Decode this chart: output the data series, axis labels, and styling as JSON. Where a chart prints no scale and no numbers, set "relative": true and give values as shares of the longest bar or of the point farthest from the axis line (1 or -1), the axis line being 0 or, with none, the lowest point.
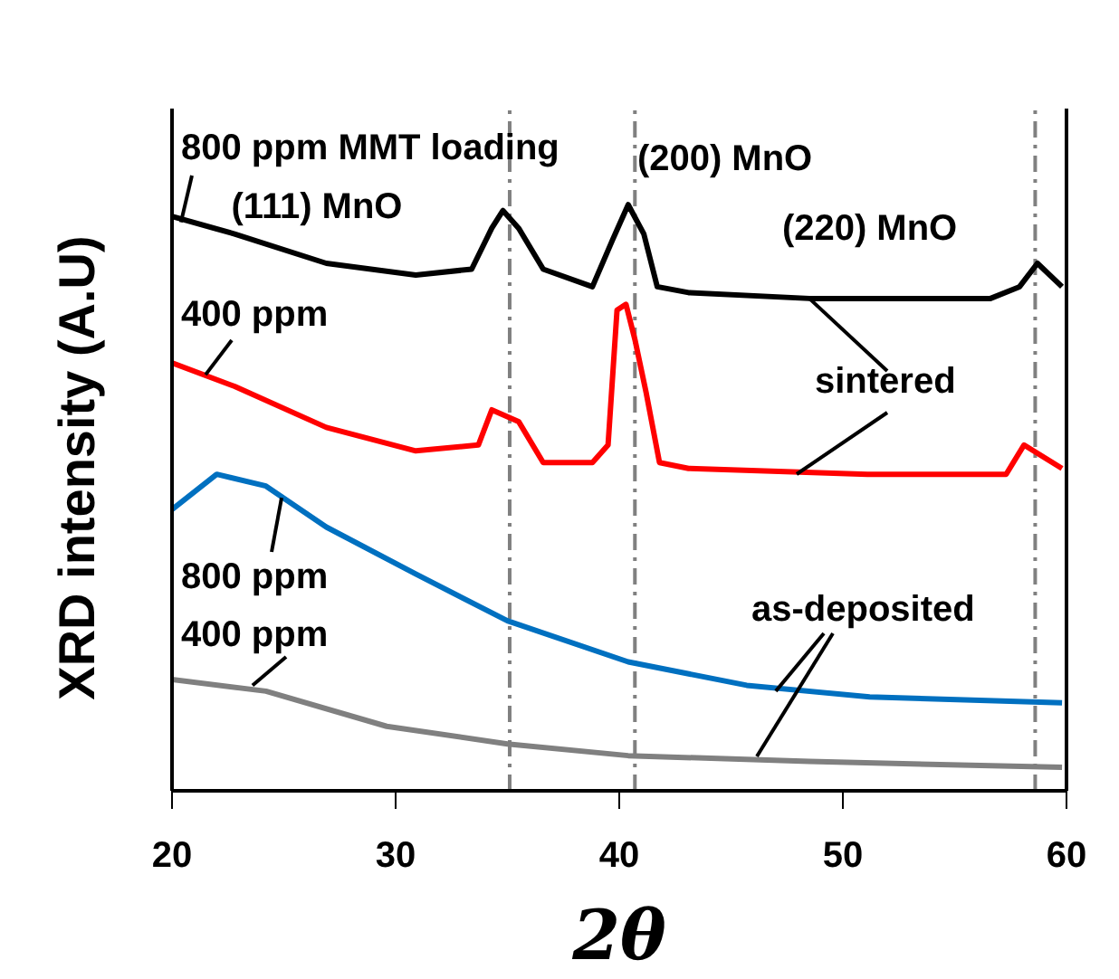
{
  "chart_data": {
    "type": "line",
    "relative": true,
    "xlabel": "2θ",
    "ylabel": "XRD intensity (A.U)",
    "xlim": [
      20,
      60
    ],
    "xticks": [
      20,
      30,
      40,
      50,
      60
    ],
    "marker": "none",
    "line_style": "solid",
    "series": [
      {
        "color": "#000000",
        "x": [
          20,
          22.8,
          26.9,
          30.9,
          33.4,
          34.3,
          34.8,
          35.5,
          36.6,
          38.8,
          39.7,
          40.4,
          41.1,
          41.7,
          43.1,
          48.5,
          56.6,
          57.9,
          58.7,
          59.8
        ],
        "values": [
          0.98,
          0.95,
          0.9,
          0.88,
          0.89,
          0.96,
          0.99,
          0.96,
          0.89,
          0.86,
          0.94,
          1,
          0.95,
          0.86,
          0.85,
          0.84,
          0.84,
          0.86,
          0.9,
          0.86
        ]
      },
      {
        "color": "#ff0000",
        "x": [
          20,
          22.8,
          26.9,
          30.9,
          33.7,
          34.3,
          35.5,
          36.6,
          38.8,
          39.5,
          39.9,
          40.3,
          40.7,
          41.2,
          41.8,
          43.1,
          51.1,
          57.3,
          58.1,
          59.8
        ],
        "values": [
          0.73,
          0.69,
          0.62,
          0.58,
          0.59,
          0.65,
          0.63,
          0.56,
          0.56,
          0.59,
          0.82,
          0.83,
          0.77,
          0.68,
          0.56,
          0.55,
          0.54,
          0.54,
          0.59,
          0.55
        ]
      },
      {
        "color": "#0070c0",
        "x": [
          20,
          22,
          24.2,
          26.9,
          30.9,
          35,
          40.4,
          45.7,
          51.2,
          59.8
        ],
        "values": [
          0.48,
          0.54,
          0.52,
          0.45,
          0.37,
          0.29,
          0.22,
          0.18,
          0.16,
          0.15
        ]
      },
      {
        "color": "#808080",
        "x": [
          20,
          24.2,
          29.6,
          35,
          40.4,
          48.5,
          59.8
        ],
        "values": [
          0.19,
          0.17,
          0.11,
          0.08,
          0.06,
          0.05,
          0.04
        ]
      }
    ],
    "ref_lines": [
      {
        "axis": "x",
        "value": 35.1,
        "color": "#808080",
        "line_style": "dashed"
      },
      {
        "axis": "x",
        "value": 40.7,
        "color": "#808080",
        "line_style": "dashed"
      },
      {
        "axis": "x",
        "value": 58.6,
        "color": "#808080",
        "line_style": "dashed"
      }
    ],
    "annotations": [
      {
        "text": "800 ppm MMT loading",
        "x": 20.4,
        "y": 0.97
      },
      {
        "text": "(111) MnO",
        "x": 34.8,
        "y": 0.99
      },
      {
        "text": "(200) MnO",
        "x": 40.4,
        "y": 1
      },
      {
        "text": "(220) MnO",
        "x": 58.7,
        "y": 0.9
      },
      {
        "text": "400 ppm",
        "x": 21.5,
        "y": 0.71
      },
      {
        "text": "sintered",
        "x": 48.5,
        "y": 0.84
      },
      {
        "text": "800 ppm",
        "x": 24.9,
        "y": 0.5
      },
      {
        "text": "400 ppm",
        "x": 23.6,
        "y": 0.18
      },
      {
        "text": "as-deposited",
        "x": 47,
        "y": 0.17
      }
    ]
  }
}
